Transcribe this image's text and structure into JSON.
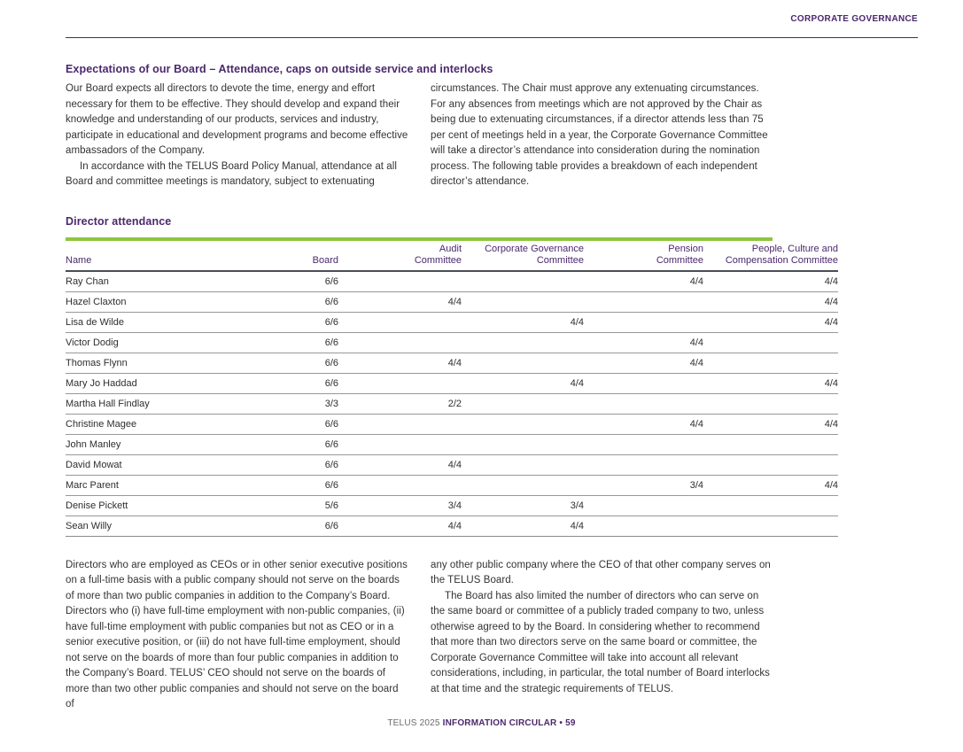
{
  "colors": {
    "purple": "#4B286D",
    "green": "#8DC63F",
    "body_text": "#333333"
  },
  "header": {
    "label": "CORPORATE GOVERNANCE"
  },
  "sections": {
    "expectations": {
      "heading": "Expectations of our Board – Attendance, caps on outside service and interlocks",
      "left": {
        "p1": "Our Board expects all directors to devote the time, energy and effort necessary for them to be effective. They should develop and expand their knowledge and understanding of our products, services and industry, participate in educational and development programs and become effective ambassadors of the Company.",
        "p2": "In accordance with the TELUS Board Policy Manual, attendance at all Board and committee meetings is mandatory, subject to extenuating"
      },
      "right": {
        "p1": "circumstances. The Chair must approve any extenuating circumstances. For any absences from meetings which are not approved by the Chair as being due to extenuating circumstances, if a director attends less than 75 per cent of meetings held in a year, the Corporate Governance Committee will take a director’s attendance into consideration during the nomination process. The following table provides a breakdown of each independent director’s attendance."
      }
    },
    "attendance": {
      "heading": "Director attendance",
      "table": {
        "columns": [
          {
            "line1": "",
            "line2": "Name"
          },
          {
            "line1": "",
            "line2": "Board"
          },
          {
            "line1": "Audit",
            "line2": "Committee"
          },
          {
            "line1": "Corporate Governance",
            "line2": "Committee"
          },
          {
            "line1": "Pension",
            "line2": "Committee"
          },
          {
            "line1": "People, Culture and",
            "line2": "Compensation Committee"
          }
        ],
        "rows": [
          [
            "Ray Chan",
            "6/6",
            "",
            "",
            "4/4",
            "4/4"
          ],
          [
            "Hazel Claxton",
            "6/6",
            "4/4",
            "",
            "",
            "4/4"
          ],
          [
            "Lisa de Wilde",
            "6/6",
            "",
            "4/4",
            "",
            "4/4"
          ],
          [
            "Victor Dodig",
            "6/6",
            "",
            "",
            "4/4",
            ""
          ],
          [
            "Thomas Flynn",
            "6/6",
            "4/4",
            "",
            "4/4",
            ""
          ],
          [
            "Mary Jo Haddad",
            "6/6",
            "",
            "4/4",
            "",
            "4/4"
          ],
          [
            "Martha Hall Findlay",
            "3/3",
            "2/2",
            "",
            "",
            ""
          ],
          [
            "Christine Magee",
            "6/6",
            "",
            "",
            "4/4",
            "4/4"
          ],
          [
            "John Manley",
            "6/6",
            "",
            "",
            "",
            ""
          ],
          [
            "David Mowat",
            "6/6",
            "4/4",
            "",
            "",
            ""
          ],
          [
            "Marc Parent",
            "6/6",
            "",
            "",
            "3/4",
            "4/4"
          ],
          [
            "Denise Pickett",
            "5/6",
            "3/4",
            "3/4",
            "",
            ""
          ],
          [
            "Sean Willy",
            "6/6",
            "4/4",
            "4/4",
            "",
            ""
          ]
        ]
      }
    },
    "caps": {
      "left": {
        "p1": "Directors who are employed as CEOs or in other senior executive positions on a full-time basis with a public company should not serve on the boards of more than two public companies in addition to the Company’s Board. Directors who (i) have full-time employment with non-public companies, (ii) have full-time employment with public companies but not as CEO or in a senior executive position, or (iii) do not have full-time employment, should not serve on the boards of more than four public companies in addition to the Company’s Board. TELUS’ CEO should not serve on the boards of more than two other public companies and should not serve on the board of"
      },
      "right": {
        "p1": "any other public company where the CEO of that other company serves on the TELUS Board.",
        "p2": "The Board has also limited the number of directors who can serve on the same board or committee of a publicly traded company to two, unless otherwise agreed to by the Board. In considering whether to recommend that more than two directors serve on the same board or committee, the Corporate Governance Committee will take into account all relevant considerations, including, in particular, the total number of Board interlocks at that time and the strategic requirements of TELUS."
      }
    }
  },
  "footer": {
    "left": "TELUS 2025",
    "right": "INFORMATION CIRCULAR • 59"
  }
}
